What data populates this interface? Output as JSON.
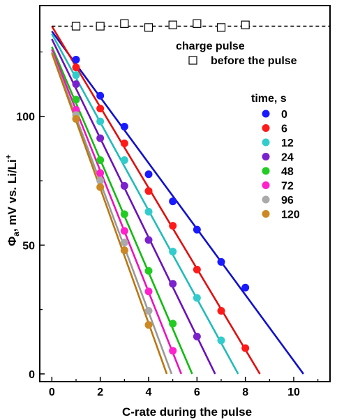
{
  "chart_data": {
    "type": "scatter",
    "xlabel": "C-rate during the pulse",
    "ylabel_main": "Φ",
    "ylabel_sub": "a",
    "ylabel_rest": ", mV vs. Li/Li",
    "ylabel_sup": "+",
    "xlim": [
      -0.5,
      11.5
    ],
    "ylim": [
      -3,
      143
    ],
    "xticks": [
      0,
      2,
      4,
      6,
      8,
      10
    ],
    "yticks": [
      0,
      50,
      100
    ],
    "xticks_minor": [
      1,
      3,
      5,
      7,
      9,
      11
    ],
    "yticks_minor": [
      25,
      75,
      125
    ],
    "grid": false,
    "reference": {
      "name": "charge pulse",
      "marker_label": "before the pulse",
      "y_line": 135,
      "points": [
        [
          1,
          135
        ],
        [
          2,
          135
        ],
        [
          3,
          136
        ],
        [
          4,
          134.5
        ],
        [
          5,
          135.5
        ],
        [
          6,
          136
        ],
        [
          7,
          134.5
        ],
        [
          8,
          135.5
        ]
      ]
    },
    "legend_title": "time, s",
    "legend_placement": "right",
    "series": [
      {
        "name": "0",
        "color": "#1a1aff",
        "line_color": "#1010cc",
        "fit": [
          [
            0,
            133
          ],
          [
            10.4,
            0
          ]
        ],
        "points": [
          [
            1,
            122
          ],
          [
            2,
            108
          ],
          [
            3,
            96
          ],
          [
            4,
            77.5
          ],
          [
            5,
            67
          ],
          [
            6,
            56
          ],
          [
            7,
            43.5
          ],
          [
            8,
            33.5
          ]
        ]
      },
      {
        "name": "6",
        "color": "#ff1a1a",
        "line_color": "#e01010",
        "fit": [
          [
            0,
            135
          ],
          [
            8.6,
            0
          ]
        ],
        "points": [
          [
            1,
            119
          ],
          [
            2,
            103
          ],
          [
            3,
            89.5
          ],
          [
            4,
            71
          ],
          [
            5,
            57.5
          ],
          [
            6,
            40.5
          ],
          [
            7,
            24.5
          ],
          [
            8,
            10
          ]
        ]
      },
      {
        "name": "12",
        "color": "#33cccc",
        "line_color": "#22bbbb",
        "fit": [
          [
            0,
            132
          ],
          [
            7.7,
            0
          ]
        ],
        "points": [
          [
            1,
            116
          ],
          [
            2,
            98
          ],
          [
            3,
            83
          ],
          [
            4,
            63
          ],
          [
            5,
            47.5
          ],
          [
            6,
            29.5
          ],
          [
            7,
            13
          ]
        ]
      },
      {
        "name": "24",
        "color": "#7a22cc",
        "line_color": "#6a11bb",
        "fit": [
          [
            0,
            130
          ],
          [
            6.75,
            0
          ]
        ],
        "points": [
          [
            1,
            112.5
          ],
          [
            2,
            91.5
          ],
          [
            3,
            73
          ],
          [
            4,
            52
          ],
          [
            5,
            35
          ],
          [
            6,
            14.5
          ]
        ]
      },
      {
        "name": "48",
        "color": "#22cc22",
        "line_color": "#11bb11",
        "fit": [
          [
            0,
            127
          ],
          [
            5.8,
            0
          ]
        ],
        "points": [
          [
            1,
            106.5
          ],
          [
            2,
            83
          ],
          [
            3,
            62
          ],
          [
            4,
            40
          ],
          [
            5,
            19.5
          ]
        ]
      },
      {
        "name": "72",
        "color": "#ff22cc",
        "line_color": "#ee11bb",
        "fit": [
          [
            0,
            126
          ],
          [
            5.35,
            0
          ]
        ],
        "points": [
          [
            1,
            102.5
          ],
          [
            2,
            78
          ],
          [
            3,
            55.5
          ],
          [
            4,
            32
          ],
          [
            5,
            9
          ]
        ]
      },
      {
        "name": "96",
        "color": "#aaaaaa",
        "line_color": "#999999",
        "fit": [
          [
            0,
            125
          ],
          [
            4.95,
            0
          ]
        ],
        "points": [
          [
            1,
            100.5
          ],
          [
            2,
            75
          ],
          [
            3,
            51
          ],
          [
            4,
            24.5
          ]
        ]
      },
      {
        "name": "120",
        "color": "#cc8822",
        "line_color": "#bb7711",
        "fit": [
          [
            0,
            124.5
          ],
          [
            4.75,
            0
          ]
        ],
        "points": [
          [
            1,
            99
          ],
          [
            2,
            72.5
          ],
          [
            3,
            48
          ],
          [
            4,
            19
          ]
        ]
      }
    ]
  }
}
